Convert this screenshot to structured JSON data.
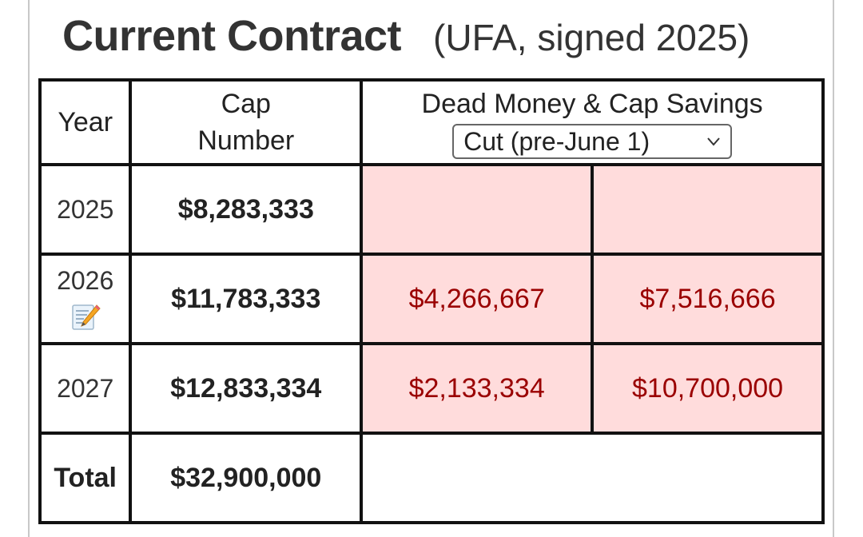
{
  "header": {
    "title": "Current Contract",
    "subtitle": "(UFA, signed 2025)"
  },
  "table": {
    "columns": {
      "year": "Year",
      "cap_line1": "Cap",
      "cap_line2": "Number",
      "dead_savings": "Dead Money & Cap Savings"
    },
    "scenario_select": {
      "value": "Cut (pre-June 1)",
      "icon": "chevron-down-icon"
    },
    "rows": [
      {
        "year": "2025",
        "cap": "$8,283,333",
        "dead": "",
        "savings": ""
      },
      {
        "year": "2026",
        "cap": "$11,783,333",
        "dead": "$4,266,667",
        "savings": "$7,516,666",
        "icon": "memo-icon"
      },
      {
        "year": "2027",
        "cap": "$12,833,334",
        "dead": "$2,133,334",
        "savings": "$10,700,000"
      }
    ],
    "total": {
      "label": "Total",
      "cap": "$32,900,000"
    }
  },
  "colors": {
    "highlight_bg": "#ffdcdc",
    "highlight_border": "#8a0000",
    "highlight_text": "#9a0000"
  }
}
